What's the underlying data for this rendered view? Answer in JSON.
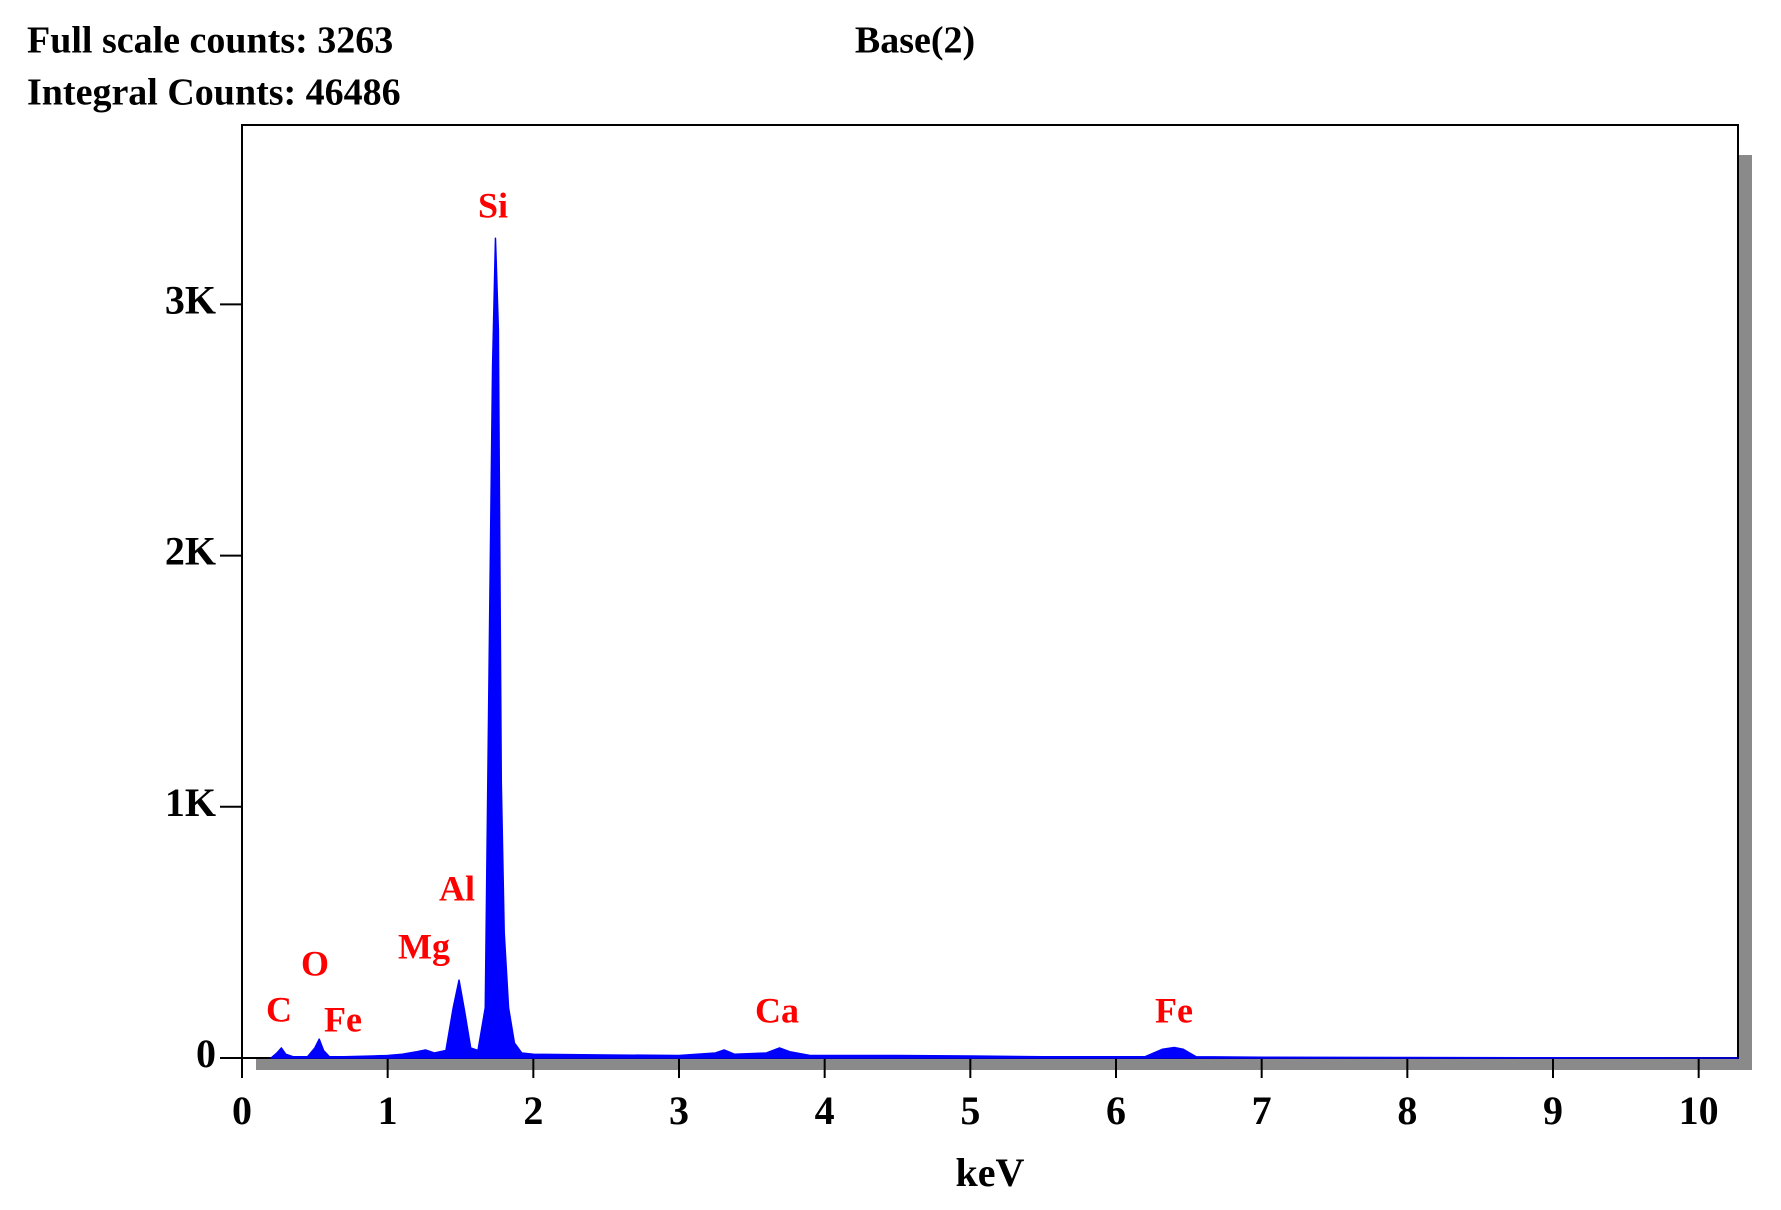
{
  "chart_data": {
    "type": "area",
    "title": "Base(2)",
    "full_scale_counts": "Full scale counts: 3263",
    "integral_counts": "Integral Counts: 46486",
    "xlabel": "keV",
    "color": "#0000ff",
    "annotations": [
      "C",
      "O",
      "Fe",
      "Mg",
      "Al",
      "Si",
      "Ca",
      "Fe"
    ],
    "annotation_color": "#ff0000",
    "xlim": [
      0,
      10.27
    ],
    "xticks": [
      0,
      1,
      2,
      3,
      4,
      5,
      6,
      7,
      8,
      9,
      10
    ],
    "ylim": [
      0,
      3714
    ],
    "yticks": [
      0,
      {
        "value": 1000,
        "label": "1K"
      },
      {
        "value": 2000,
        "label": "2K"
      },
      {
        "value": 3000,
        "label": "3K"
      }
    ],
    "x": [
      0.2,
      0.24,
      0.27,
      0.3,
      0.35,
      0.45,
      0.5,
      0.53,
      0.56,
      0.6,
      0.7,
      0.9,
      1.0,
      1.1,
      1.2,
      1.26,
      1.32,
      1.4,
      1.45,
      1.49,
      1.53,
      1.57,
      1.62,
      1.67,
      1.7,
      1.72,
      1.74,
      1.76,
      1.78,
      1.8,
      1.83,
      1.87,
      1.92,
      2.0,
      2.5,
      3.0,
      3.25,
      3.31,
      3.38,
      3.6,
      3.69,
      3.76,
      3.9,
      4.5,
      5.0,
      5.5,
      6.2,
      6.32,
      6.4,
      6.46,
      6.55,
      7.0,
      8.0,
      9.0,
      10.0,
      10.27
    ],
    "values": [
      0,
      20,
      40,
      15,
      5,
      5,
      40,
      75,
      30,
      5,
      5,
      8,
      10,
      15,
      25,
      32,
      20,
      30,
      200,
      310,
      180,
      40,
      30,
      200,
      1750,
      2750,
      3263,
      2900,
      1100,
      500,
      200,
      60,
      20,
      15,
      12,
      10,
      20,
      32,
      15,
      20,
      40,
      25,
      10,
      10,
      8,
      5,
      5,
      35,
      42,
      35,
      5,
      3,
      2,
      1,
      0,
      0
    ]
  }
}
